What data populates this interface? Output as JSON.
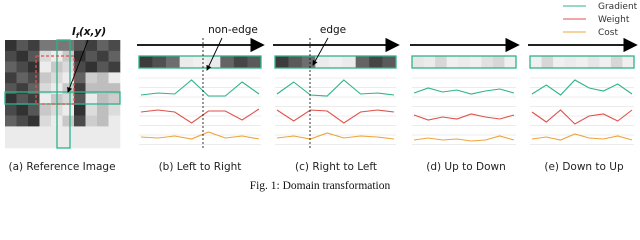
{
  "legend": [
    {
      "name": "Gradient"
    },
    {
      "name": "Weight"
    },
    {
      "name": "Cost"
    }
  ],
  "annotations": {
    "pixel": {
      "base": "I",
      "sub": "f",
      "args": "(x,y)"
    },
    "non_edge": "non-edge",
    "edge": "edge"
  },
  "panels": [
    {
      "caption": "(a) Reference Image"
    },
    {
      "caption": "(b) Left to Right"
    },
    {
      "caption": "(c) Right to Left"
    },
    {
      "caption": "(d) Up to Down"
    },
    {
      "caption": "(e) Down to Up"
    }
  ],
  "caption": "Fig. 1: Domain transformation"
}
